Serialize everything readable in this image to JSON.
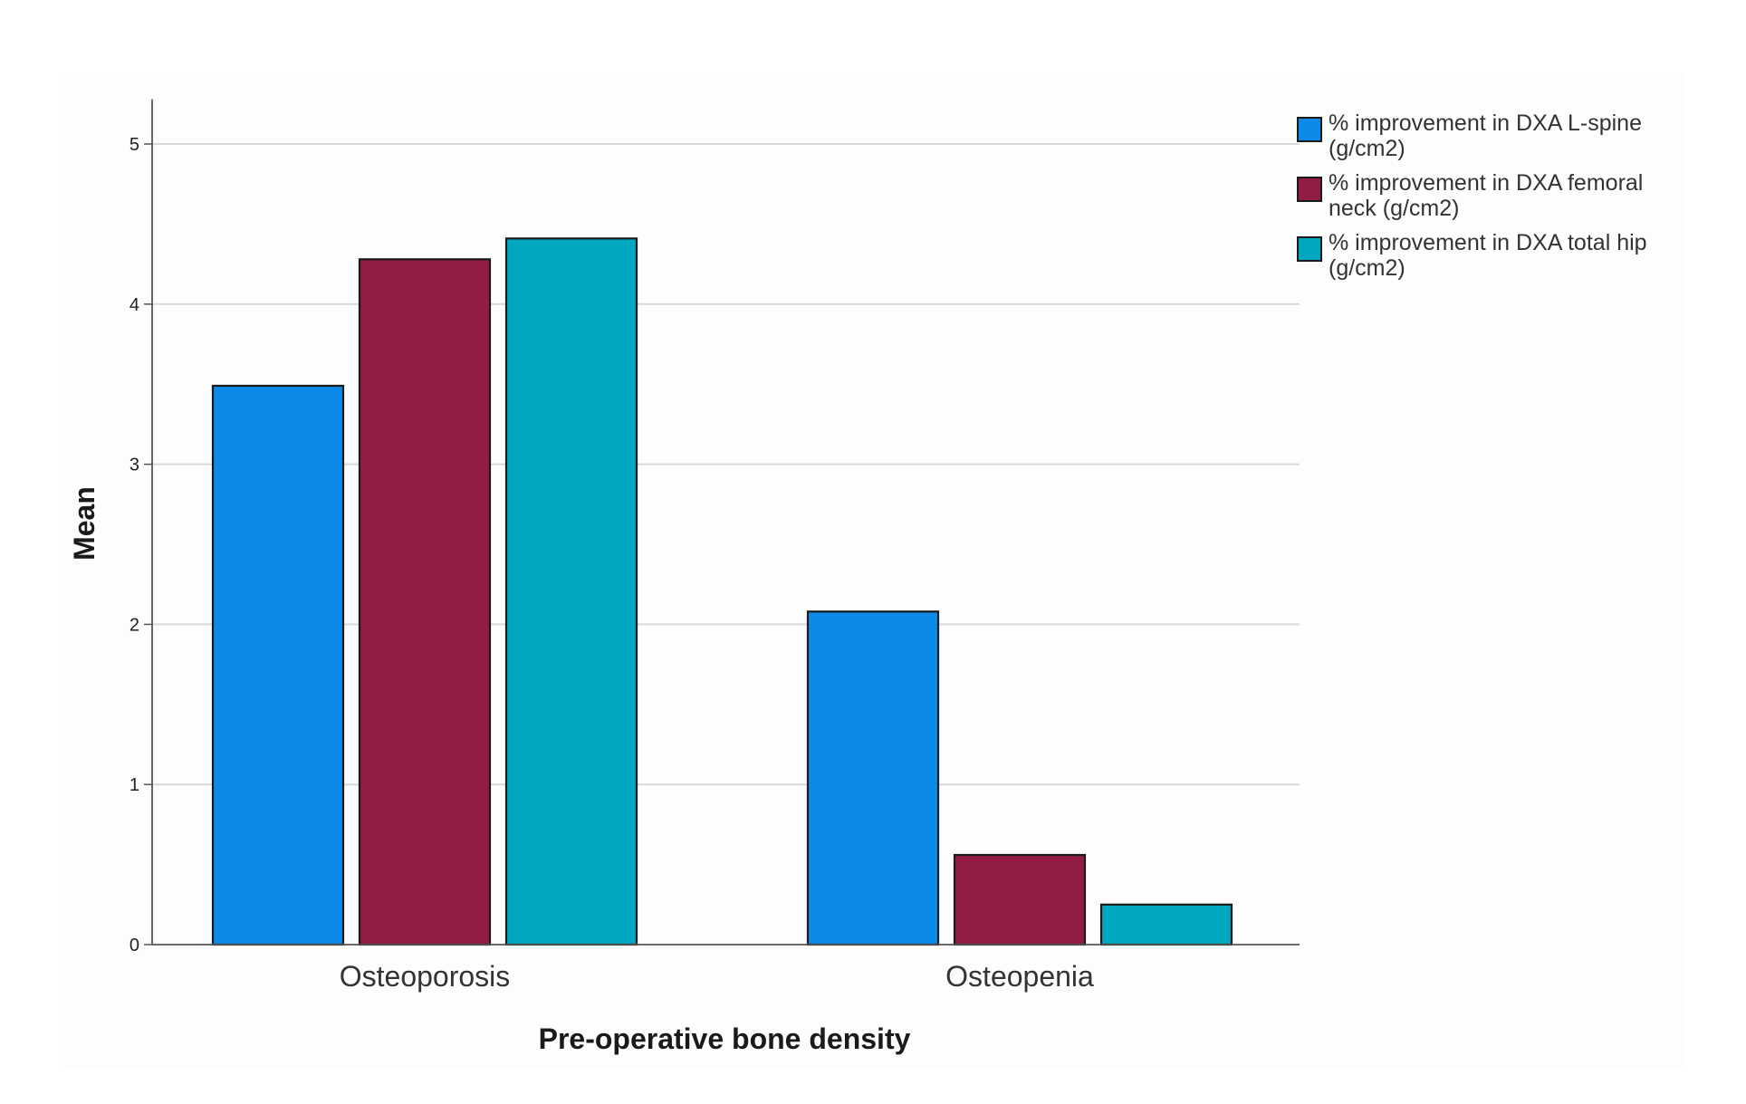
{
  "chart_data": {
    "type": "bar",
    "title": "",
    "xlabel": "Pre-operative bone density",
    "ylabel": "Mean",
    "categories": [
      "Osteoporosis",
      "Osteopenia"
    ],
    "series": [
      {
        "name": "% improvement in DXA L-spine (g/cm2)",
        "color": "#0b8ae8",
        "values": [
          3.49,
          2.08
        ]
      },
      {
        "name": "% improvement in DXA femoral neck (g/cm2)",
        "color": "#921c45",
        "values": [
          4.28,
          0.56
        ]
      },
      {
        "name": "% improvement in DXA total hip (g/cm2)",
        "color": "#00a7c0",
        "values": [
          4.41,
          0.25
        ]
      }
    ],
    "yticks": [
      "0",
      "1",
      "2",
      "3",
      "4",
      "5"
    ],
    "ylim": [
      0,
      5.28
    ],
    "grid": true,
    "legend": "right"
  }
}
